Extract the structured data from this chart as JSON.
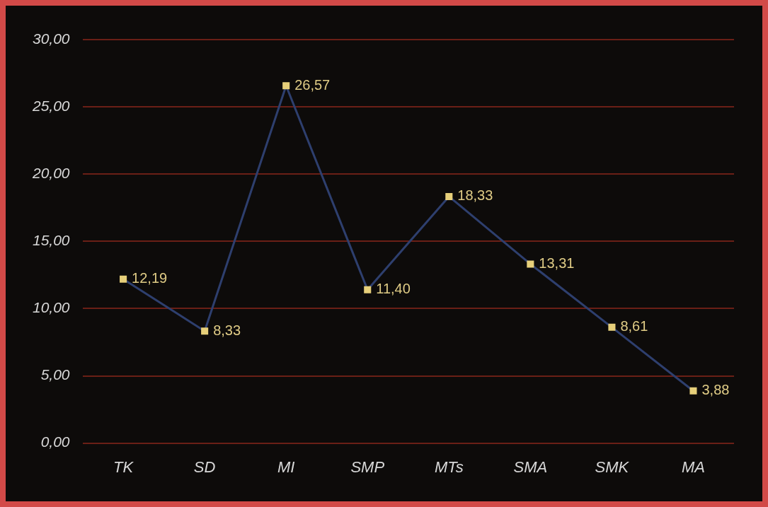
{
  "chart_data": {
    "type": "line",
    "categories": [
      "TK",
      "SD",
      "MI",
      "SMP",
      "MTs",
      "SMA",
      "SMK",
      "MA"
    ],
    "series": [
      {
        "color": "#2e3f6e",
        "values": [
          12.19,
          8.33,
          26.57,
          11.4,
          18.33,
          13.31,
          8.61,
          3.88
        ],
        "value_labels": [
          "12,19",
          "8,33",
          "26,57",
          "11,40",
          "18,33",
          "13,31",
          "8,61",
          "3,88"
        ]
      }
    ],
    "ylim": [
      0,
      30
    ],
    "yticks": [
      {
        "value": 0,
        "label": "0,00"
      },
      {
        "value": 5,
        "label": "5,00"
      },
      {
        "value": 10,
        "label": "10,00"
      },
      {
        "value": 15,
        "label": "15,00"
      },
      {
        "value": 20,
        "label": "20,00"
      },
      {
        "value": 25,
        "label": "25,00"
      },
      {
        "value": 30,
        "label": "30,00"
      }
    ],
    "grid": "y",
    "legend": false,
    "marker": "square",
    "line_style": "solid"
  }
}
